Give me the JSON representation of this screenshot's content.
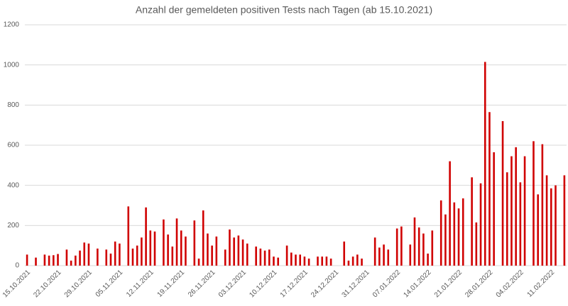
{
  "chart_data": {
    "type": "bar",
    "title": "Anzahl der gemeldeten positiven Tests nach Tagen (ab 15.10.2021)",
    "color": "#d00000",
    "grid": true,
    "ylim": [
      0,
      1200
    ],
    "yticks": [
      0,
      200,
      400,
      600,
      800,
      1000,
      1200
    ],
    "categories": [
      "15.10.2021",
      null,
      null,
      null,
      null,
      null,
      null,
      "22.10.2021",
      null,
      null,
      null,
      null,
      null,
      null,
      "29.10.2021",
      null,
      null,
      null,
      null,
      null,
      null,
      "05.11.2021",
      null,
      null,
      null,
      null,
      null,
      null,
      "12.11.2021",
      null,
      null,
      null,
      null,
      null,
      null,
      "19.11.2021",
      null,
      null,
      null,
      null,
      null,
      null,
      "26.11.2021",
      null,
      null,
      null,
      null,
      null,
      null,
      "03.12.2021",
      null,
      null,
      null,
      null,
      null,
      null,
      "10.12.2021",
      null,
      null,
      null,
      null,
      null,
      null,
      "17.12.2021",
      null,
      null,
      null,
      null,
      null,
      null,
      "24.12.2021",
      null,
      null,
      null,
      null,
      null,
      null,
      "31.12.2021",
      null,
      null,
      null,
      null,
      null,
      null,
      "07.01.2022",
      null,
      null,
      null,
      null,
      null,
      null,
      "14.01.2022",
      null,
      null,
      null,
      null,
      null,
      null,
      "21.01.2022",
      null,
      null,
      null,
      null,
      null,
      null,
      "28.01.2022",
      null,
      null,
      null,
      null,
      null,
      null,
      "04.02.2022",
      null,
      null,
      null,
      null,
      null,
      null,
      "11.02.2022",
      null,
      null,
      null
    ],
    "values": [
      55,
      0,
      40,
      0,
      55,
      50,
      52,
      58,
      0,
      80,
      25,
      50,
      75,
      115,
      110,
      0,
      85,
      0,
      80,
      60,
      120,
      110,
      0,
      295,
      85,
      100,
      140,
      290,
      175,
      170,
      0,
      230,
      155,
      95,
      235,
      175,
      145,
      0,
      225,
      35,
      275,
      160,
      100,
      145,
      0,
      80,
      180,
      140,
      150,
      130,
      110,
      0,
      95,
      85,
      75,
      80,
      45,
      40,
      0,
      100,
      65,
      55,
      55,
      45,
      35,
      0,
      45,
      45,
      45,
      35,
      0,
      0,
      120,
      25,
      45,
      55,
      35,
      0,
      0,
      140,
      90,
      105,
      80,
      0,
      185,
      195,
      0,
      105,
      240,
      190,
      160,
      60,
      175,
      0,
      325,
      255,
      520,
      315,
      285,
      335,
      0,
      440,
      215,
      410,
      1015,
      765,
      565,
      0,
      720,
      465,
      545,
      590,
      415,
      545,
      0,
      620,
      355,
      605,
      450,
      385,
      400,
      0,
      450
    ]
  }
}
